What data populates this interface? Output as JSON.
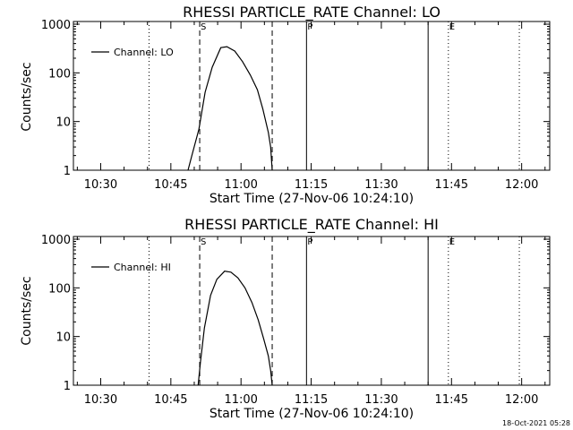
{
  "chart_data": [
    {
      "type": "line",
      "title": "RHESSI PARTICLE_RATE Channel: LO",
      "xlabel": "Start Time (27-Nov-06 10:24:10)",
      "ylabel": "Counts/sec",
      "yscale": "log",
      "ylim": [
        1,
        1000
      ],
      "xlim": [
        "10:24:10",
        "12:06:00"
      ],
      "x_ticks": [
        "10:30",
        "10:45",
        "11:00",
        "11:15",
        "11:30",
        "11:45",
        "12:00"
      ],
      "y_ticks": [
        "1",
        "10",
        "100",
        "1000"
      ],
      "legend": "top-left",
      "series": [
        {
          "name": "Channel: LO",
          "x": [
            "10:48:40",
            "10:49:30",
            "10:51:00",
            "10:52:20",
            "10:53:50",
            "10:55:40",
            "10:57:00",
            "10:58:40",
            "11:00:20",
            "11:02:00",
            "11:03:30",
            "11:04:40",
            "11:05:50",
            "11:06:20",
            "11:06:40"
          ],
          "values": [
            1,
            2,
            7,
            40,
            130,
            330,
            345,
            280,
            170,
            90,
            45,
            18,
            6,
            3,
            1
          ]
        }
      ],
      "markers": [
        {
          "label": "S",
          "time": "10:51:10",
          "style": "dashed"
        },
        {
          "label": "",
          "time": "11:06:40",
          "style": "dashed"
        },
        {
          "label": "P",
          "time": "11:14:00",
          "style": "solid"
        },
        {
          "label": "",
          "time": "11:40:00",
          "style": "solid"
        },
        {
          "label": "E",
          "time": "11:44:20",
          "style": "dotted"
        },
        {
          "label": "",
          "time": "10:40:20",
          "style": "dotted"
        },
        {
          "label": "",
          "time": "11:59:30",
          "style": "dotted"
        }
      ]
    },
    {
      "type": "line",
      "title": "RHESSI PARTICLE_RATE Channel: HI",
      "xlabel": "Start Time (27-Nov-06 10:24:10)",
      "ylabel": "Counts/sec",
      "yscale": "log",
      "ylim": [
        1,
        1000
      ],
      "xlim": [
        "10:24:10",
        "12:06:00"
      ],
      "x_ticks": [
        "10:30",
        "10:45",
        "11:00",
        "11:15",
        "11:30",
        "11:45",
        "12:00"
      ],
      "y_ticks": [
        "1",
        "10",
        "100",
        "1000"
      ],
      "legend": "top-left",
      "series": [
        {
          "name": "Channel: HI",
          "x": [
            "10:50:50",
            "10:51:20",
            "10:52:10",
            "10:53:30",
            "10:54:50",
            "10:56:30",
            "10:57:50",
            "10:59:20",
            "11:00:50",
            "11:02:20",
            "11:03:40",
            "11:04:50",
            "11:05:50",
            "11:06:20",
            "11:06:40"
          ],
          "values": [
            1,
            3,
            15,
            70,
            150,
            220,
            210,
            160,
            100,
            50,
            22,
            9,
            4,
            2,
            1
          ]
        }
      ],
      "markers": [
        {
          "label": "S",
          "time": "10:51:10",
          "style": "dashed"
        },
        {
          "label": "",
          "time": "11:06:40",
          "style": "dashed"
        },
        {
          "label": "P",
          "time": "11:14:00",
          "style": "solid"
        },
        {
          "label": "",
          "time": "11:40:00",
          "style": "solid"
        },
        {
          "label": "E",
          "time": "11:44:20",
          "style": "dotted"
        },
        {
          "label": "",
          "time": "10:40:20",
          "style": "dotted"
        },
        {
          "label": "",
          "time": "11:59:30",
          "style": "dotted"
        }
      ]
    }
  ],
  "footer": {
    "timestamp": "18-Oct-2021 05:28"
  }
}
